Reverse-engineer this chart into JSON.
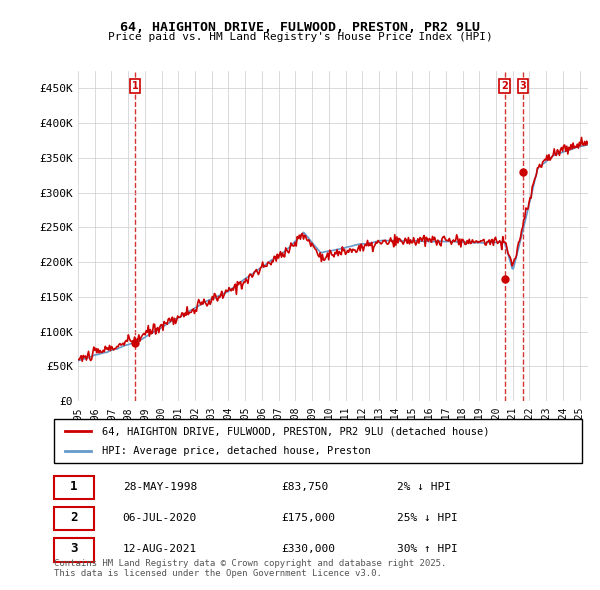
{
  "title": "64, HAIGHTON DRIVE, FULWOOD, PRESTON, PR2 9LU",
  "subtitle": "Price paid vs. HM Land Registry's House Price Index (HPI)",
  "ylabel": "",
  "ylim": [
    0,
    475000
  ],
  "yticks": [
    0,
    50000,
    100000,
    150000,
    200000,
    250000,
    300000,
    350000,
    400000,
    450000
  ],
  "ytick_labels": [
    "£0",
    "£50K",
    "£100K",
    "£150K",
    "£200K",
    "£250K",
    "£300K",
    "£350K",
    "£400K",
    "£450K"
  ],
  "xlim_start": 1995.0,
  "xlim_end": 2025.5,
  "hpi_color": "#6699cc",
  "price_color": "#cc0000",
  "sale_marker_color": "#cc0000",
  "legend_label_price": "64, HAIGHTON DRIVE, FULWOOD, PRESTON, PR2 9LU (detached house)",
  "legend_label_hpi": "HPI: Average price, detached house, Preston",
  "sale_1_date": 1998.41,
  "sale_1_price": 83750,
  "sale_1_label": "1",
  "sale_1_text": "28-MAY-1998",
  "sale_1_price_text": "£83,750",
  "sale_1_hpi_text": "2% ↓ HPI",
  "sale_2_date": 2020.51,
  "sale_2_price": 175000,
  "sale_2_label": "2",
  "sale_2_text": "06-JUL-2020",
  "sale_2_price_text": "£175,000",
  "sale_2_hpi_text": "25% ↓ HPI",
  "sale_3_date": 2021.62,
  "sale_3_price": 330000,
  "sale_3_label": "3",
  "sale_3_text": "12-AUG-2021",
  "sale_3_price_text": "£330,000",
  "sale_3_hpi_text": "30% ↑ HPI",
  "footer": "Contains HM Land Registry data © Crown copyright and database right 2025.\nThis data is licensed under the Open Government Licence v3.0.",
  "background_color": "#ffffff",
  "grid_color": "#cccccc"
}
